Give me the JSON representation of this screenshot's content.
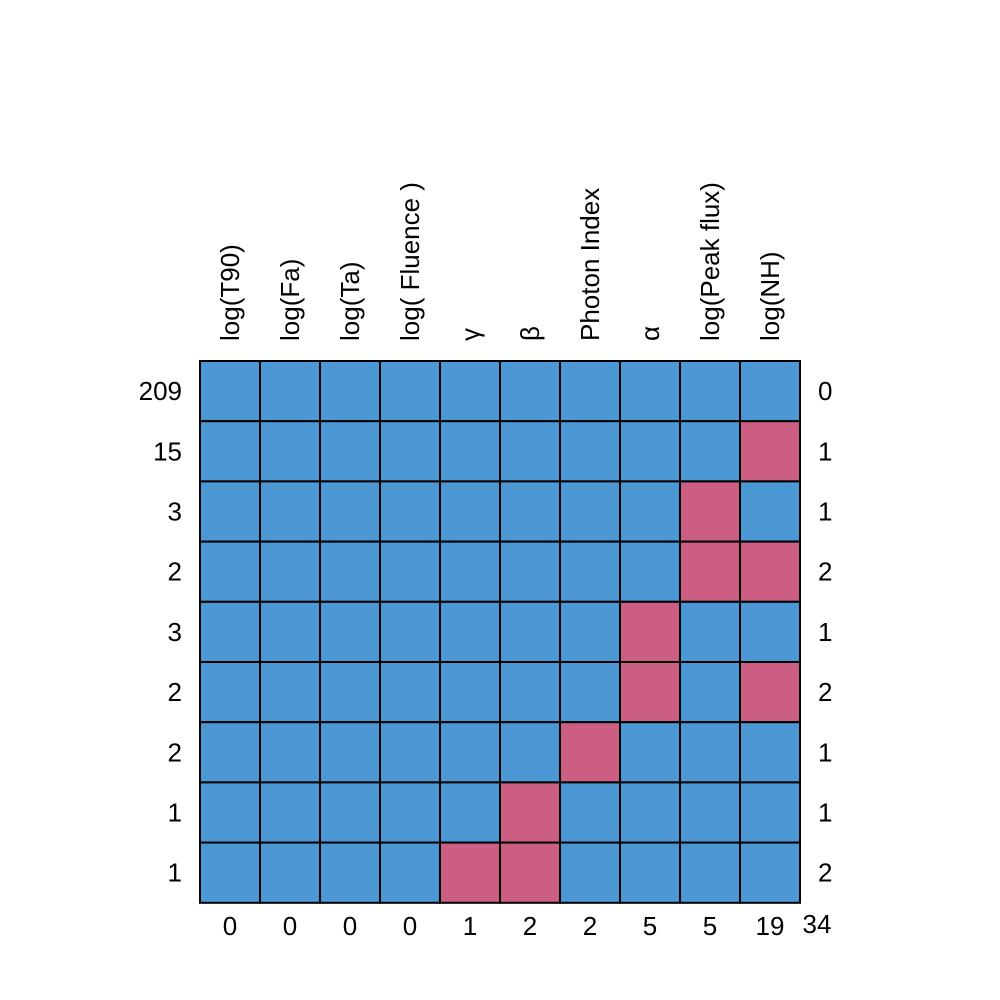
{
  "chart_data": {
    "type": "heatmap",
    "title": "",
    "variables": [
      "log(T90)",
      "log(Fa)",
      "log(Ta)",
      "log( Fluence )",
      "γ",
      "β",
      "Photon Index",
      "α",
      "log(Peak flux)",
      "log(NH)"
    ],
    "row_counts": [
      "209",
      "15",
      "3",
      "2",
      "3",
      "2",
      "2",
      "1",
      "1"
    ],
    "row_missing_counts": [
      "0",
      "1",
      "1",
      "2",
      "1",
      "2",
      "1",
      "1",
      "2"
    ],
    "column_missing_counts": [
      "0",
      "0",
      "0",
      "0",
      "1",
      "2",
      "2",
      "5",
      "5",
      "19"
    ],
    "total_missing": "34",
    "matrix": [
      [
        1,
        1,
        1,
        1,
        1,
        1,
        1,
        1,
        1,
        1
      ],
      [
        1,
        1,
        1,
        1,
        1,
        1,
        1,
        1,
        1,
        0
      ],
      [
        1,
        1,
        1,
        1,
        1,
        1,
        1,
        1,
        0,
        1
      ],
      [
        1,
        1,
        1,
        1,
        1,
        1,
        1,
        1,
        0,
        0
      ],
      [
        1,
        1,
        1,
        1,
        1,
        1,
        1,
        0,
        1,
        1
      ],
      [
        1,
        1,
        1,
        1,
        1,
        1,
        1,
        0,
        1,
        0
      ],
      [
        1,
        1,
        1,
        1,
        1,
        1,
        0,
        1,
        1,
        1
      ],
      [
        1,
        1,
        1,
        1,
        1,
        0,
        1,
        1,
        1,
        1
      ],
      [
        1,
        1,
        1,
        1,
        0,
        0,
        1,
        1,
        1,
        1
      ]
    ],
    "legend": "none",
    "colors": {
      "observed": "#4C98D4",
      "missing": "#CC5E84",
      "border": "#000000"
    }
  }
}
